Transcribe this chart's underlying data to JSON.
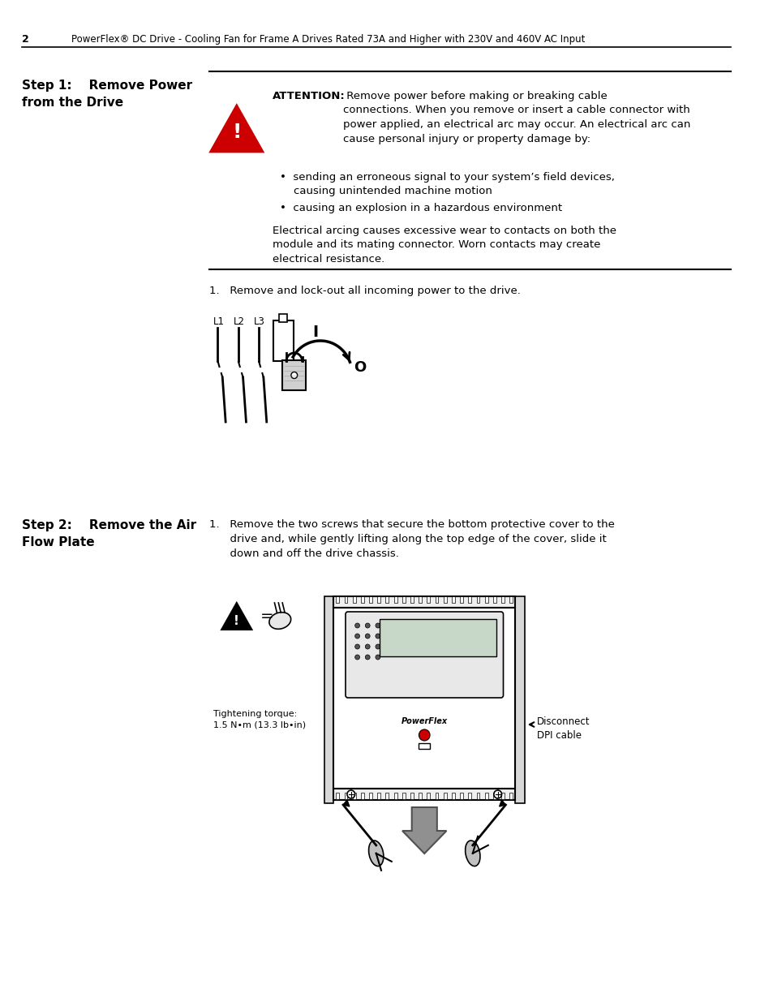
{
  "page_num": "2",
  "header_text": "PowerFlex® DC Drive - Cooling Fan for Frame A Drives Rated 73A and Higher with 230V and 460V AC Input",
  "step1_heading": "Step 1:    Remove Power\nfrom the Drive",
  "attention_label": "ATTENTION:",
  "attention_text1": " Remove power before making or breaking cable\nconnections. When you remove or insert a cable connector with\npower applied, an electrical arc may occur. An electrical arc can\ncause personal injury or property damage by:",
  "bullet1": "•  sending an erroneous signal to your system’s field devices,\n    causing unintended machine motion",
  "bullet2": "•  causing an explosion in a hazardous environment",
  "attention_text2": "Electrical arcing causes excessive wear to contacts on both the\nmodule and its mating connector. Worn contacts may create\nelectrical resistance.",
  "step1_instruction": "1.   Remove and lock-out all incoming power to the drive.",
  "step2_heading": "Step 2:    Remove the Air\nFlow Plate",
  "step2_instruction": "1.   Remove the two screws that secure the bottom protective cover to the\n      drive and, while gently lifting along the top edge of the cover, slide it\n      down and off the drive chassis.",
  "tightening_label": "Tightening torque:\n1.5 N•m (13.3 lb•in)",
  "disconnect_label": "Disconnect\nDPI cable",
  "bg_color": "#ffffff",
  "text_color": "#000000",
  "heading_color": "#000000",
  "triangle_fill": "#cc0000",
  "triangle_edge": "#cc0000"
}
